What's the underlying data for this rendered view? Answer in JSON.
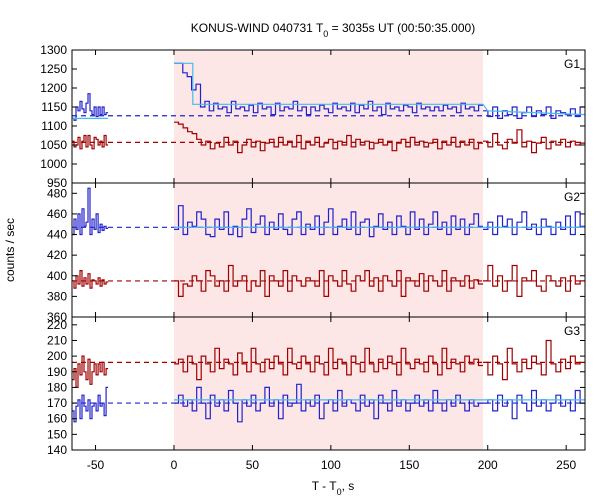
{
  "chart_data": {
    "type": "line",
    "title_main": "KONUS-WIND 040731 T",
    "title_sub": "0",
    "title_rest": " = 3035s UT (00:50:35.000)",
    "xlabel_main": "T - T",
    "xlabel_sub": "0",
    "xlabel_rest": ", s",
    "ylabel": "counts / sec",
    "xlim": [
      -65,
      262
    ],
    "xticks": [
      -50,
      0,
      50,
      100,
      150,
      200,
      250
    ],
    "highlight": {
      "x0": 0,
      "x1": 197
    },
    "colors": {
      "blue": "#2222cc",
      "red": "#a00000",
      "cyan": "#44bbee",
      "shade": "#fde6e6"
    },
    "panels": [
      {
        "label": "G1",
        "ylim": [
          950,
          1300
        ],
        "yticks": [
          950,
          1000,
          1050,
          1100,
          1150,
          1200,
          1250,
          1300
        ],
        "blue_bg": 1127,
        "red_bg": 1057,
        "blue_fit_seg": [
          [
            0,
            1265
          ],
          [
            12,
            1265
          ],
          [
            12,
            1157
          ],
          [
            197,
            1157
          ],
          [
            200,
            1140
          ],
          [
            262,
            1130
          ]
        ],
        "blue_fit_gap": [
          -65,
          0
        ],
        "blue_fit_pre": 1120,
        "blue_pre": [
          1120,
          1115,
          1150,
          1140,
          1165,
          1145,
          1135,
          1160,
          1185,
          1140,
          1130,
          1150,
          1125,
          1150,
          1130,
          1150,
          1130,
          1135
        ],
        "red_pre": [
          1060,
          1045,
          1050,
          1070,
          1040,
          1060,
          1075,
          1045,
          1075,
          1050,
          1040,
          1070,
          1065,
          1050,
          1060,
          1045,
          1075,
          1050
        ],
        "blue_main": [
          1265,
          1265,
          1240,
          1230,
          1195,
          1210,
          1150,
          1165,
          1140,
          1160,
          1145,
          1150,
          1135,
          1165,
          1145,
          1150,
          1140,
          1155,
          1135,
          1160,
          1145,
          1150,
          1130,
          1160,
          1140,
          1150,
          1145,
          1165,
          1140,
          1150,
          1130,
          1150,
          1140,
          1155,
          1145,
          1135,
          1160,
          1145,
          1150,
          1140,
          1160,
          1135,
          1155,
          1145,
          1165,
          1140,
          1150,
          1130,
          1160,
          1145,
          1150,
          1140,
          1155,
          1150,
          1135,
          1160,
          1145,
          1150,
          1140,
          1150,
          1140,
          1155,
          1145,
          1150,
          1135,
          1160,
          1145,
          1150,
          1140,
          1155
        ],
        "red_main": [
          1110,
          1105,
          1095,
          1085,
          1080,
          1065,
          1050,
          1060,
          1040,
          1055,
          1045,
          1070,
          1050,
          1060,
          1030,
          1050,
          1065,
          1045,
          1060,
          1035,
          1055,
          1065,
          1045,
          1070,
          1050,
          1060,
          1045,
          1075,
          1040,
          1060,
          1050,
          1070,
          1045,
          1055,
          1065,
          1040,
          1060,
          1050,
          1075,
          1045,
          1065,
          1050,
          1060,
          1040,
          1055,
          1065,
          1050,
          1060,
          1035,
          1055,
          1065,
          1045,
          1070,
          1050,
          1060,
          1045,
          1055,
          1065,
          1040,
          1060,
          1050,
          1070,
          1045,
          1060,
          1050,
          1065,
          1040,
          1055
        ],
        "blue_post": [
          1140,
          1125,
          1150,
          1120,
          1140,
          1130,
          1150,
          1120,
          1135,
          1150,
          1125,
          1140,
          1130,
          1150,
          1120,
          1140,
          1135,
          1130,
          1145,
          1125,
          1150
        ],
        "red_post": [
          1060,
          1045,
          1080,
          1050,
          1040,
          1065,
          1055,
          1090,
          1045,
          1060,
          1030,
          1055,
          1070,
          1040,
          1060,
          1050,
          1065,
          1045,
          1060,
          1050,
          1055
        ]
      },
      {
        "label": "G2",
        "ylim": [
          360,
          490
        ],
        "yticks": [
          360,
          380,
          400,
          420,
          440,
          460,
          480
        ],
        "blue_bg": 447,
        "red_bg": 395,
        "blue_fit_seg": [
          [
            0,
            447
          ],
          [
            262,
            447
          ]
        ],
        "blue_fit_gap": null,
        "blue_fit_pre": null,
        "blue_pre": [
          440,
          455,
          445,
          460,
          440,
          465,
          448,
          452,
          485,
          440,
          455,
          445,
          460,
          442,
          450,
          444,
          448,
          446
        ],
        "red_pre": [
          395,
          388,
          400,
          392,
          405,
          390,
          398,
          392,
          402,
          388,
          396,
          395,
          392,
          398,
          390,
          396,
          392,
          394
        ],
        "blue_main": [
          445,
          468,
          440,
          452,
          448,
          462,
          455,
          440,
          438,
          455,
          445,
          462,
          440,
          448,
          438,
          455,
          465,
          442,
          450,
          458,
          440,
          452,
          445,
          460,
          445,
          440,
          455,
          462,
          440,
          450,
          445,
          458,
          440,
          452,
          465,
          440,
          448,
          455,
          445,
          462,
          440,
          452,
          455,
          438,
          448,
          460,
          445,
          452,
          440,
          458,
          448,
          440,
          462,
          445,
          455,
          440,
          450,
          462,
          445,
          452,
          440,
          458,
          445,
          455,
          440,
          450,
          460,
          448
        ],
        "red_main": [
          395,
          380,
          392,
          390,
          400,
          395,
          385,
          405,
          400,
          390,
          395,
          385,
          410,
          390,
          395,
          400,
          385,
          395,
          390,
          405,
          380,
          400,
          395,
          390,
          405,
          385,
          400,
          395,
          390,
          398,
          395,
          390,
          405,
          380,
          400,
          395,
          390,
          405,
          392,
          385,
          400,
          395,
          405,
          390,
          398,
          385,
          400,
          395,
          390,
          405,
          380,
          398,
          395,
          390,
          402,
          385,
          400,
          395,
          390,
          405,
          385,
          398,
          395,
          390,
          400,
          388,
          396,
          392
        ],
        "blue_post": [
          445,
          452,
          440,
          458,
          448,
          455,
          440,
          452,
          462,
          445,
          450,
          440,
          455,
          448,
          440,
          452,
          445,
          458,
          440,
          462,
          448
        ],
        "red_post": [
          395,
          410,
          390,
          400,
          385,
          395,
          410,
          380,
          398,
          395,
          405,
          390,
          385,
          400,
          395,
          390,
          398,
          385,
          400,
          392,
          395
        ]
      },
      {
        "label": "G3",
        "ylim": [
          140,
          225
        ],
        "yticks": [
          140,
          150,
          160,
          170,
          180,
          190,
          200,
          210,
          220
        ],
        "blue_bg": 170,
        "red_bg": 196,
        "blue_fit_seg": [
          [
            0,
            172
          ],
          [
            262,
            172
          ]
        ],
        "blue_fit_gap": null,
        "blue_fit_pre": null,
        "blue_pre": [
          165,
          158,
          168,
          172,
          160,
          175,
          168,
          165,
          172,
          160,
          168,
          170,
          165,
          175,
          168,
          170,
          162,
          180
        ],
        "red_pre": [
          185,
          192,
          180,
          195,
          188,
          200,
          190,
          185,
          198,
          182,
          190,
          195,
          188,
          195,
          190,
          196,
          188,
          192
        ],
        "blue_main": [
          170,
          175,
          168,
          172,
          165,
          180,
          170,
          160,
          175,
          168,
          172,
          165,
          178,
          170,
          158,
          172,
          168,
          175,
          165,
          170,
          180,
          168,
          172,
          160,
          175,
          168,
          170,
          182,
          165,
          172,
          168,
          175,
          160,
          170,
          172,
          165,
          178,
          168,
          172,
          170,
          165,
          175,
          168,
          172,
          160,
          175,
          170,
          165,
          178,
          168,
          172,
          165,
          170,
          175,
          168,
          172,
          165,
          178,
          170,
          165,
          172,
          168,
          175,
          170,
          165,
          172,
          168,
          170
        ],
        "red_main": [
          195,
          198,
          190,
          200,
          195,
          185,
          200,
          195,
          190,
          205,
          192,
          198,
          195,
          188,
          202,
          195,
          190,
          205,
          195,
          190,
          198,
          192,
          200,
          195,
          188,
          205,
          195,
          192,
          200,
          195,
          190,
          200,
          195,
          188,
          205,
          192,
          198,
          195,
          188,
          200,
          195,
          190,
          205,
          195,
          190,
          198,
          192,
          200,
          195,
          188,
          205,
          195,
          192,
          198,
          195,
          190,
          200,
          195,
          188,
          205,
          192,
          198,
          195,
          190,
          200,
          195,
          198,
          194
        ],
        "blue_post": [
          170,
          172,
          165,
          175,
          168,
          172,
          160,
          175,
          170,
          165,
          178,
          168,
          172,
          165,
          170,
          175,
          168,
          172,
          165,
          178,
          170
        ],
        "red_post": [
          196,
          188,
          200,
          195,
          185,
          205,
          195,
          190,
          198,
          192,
          200,
          195,
          188,
          210,
          195,
          190,
          198,
          192,
          200,
          195,
          196
        ]
      }
    ]
  }
}
